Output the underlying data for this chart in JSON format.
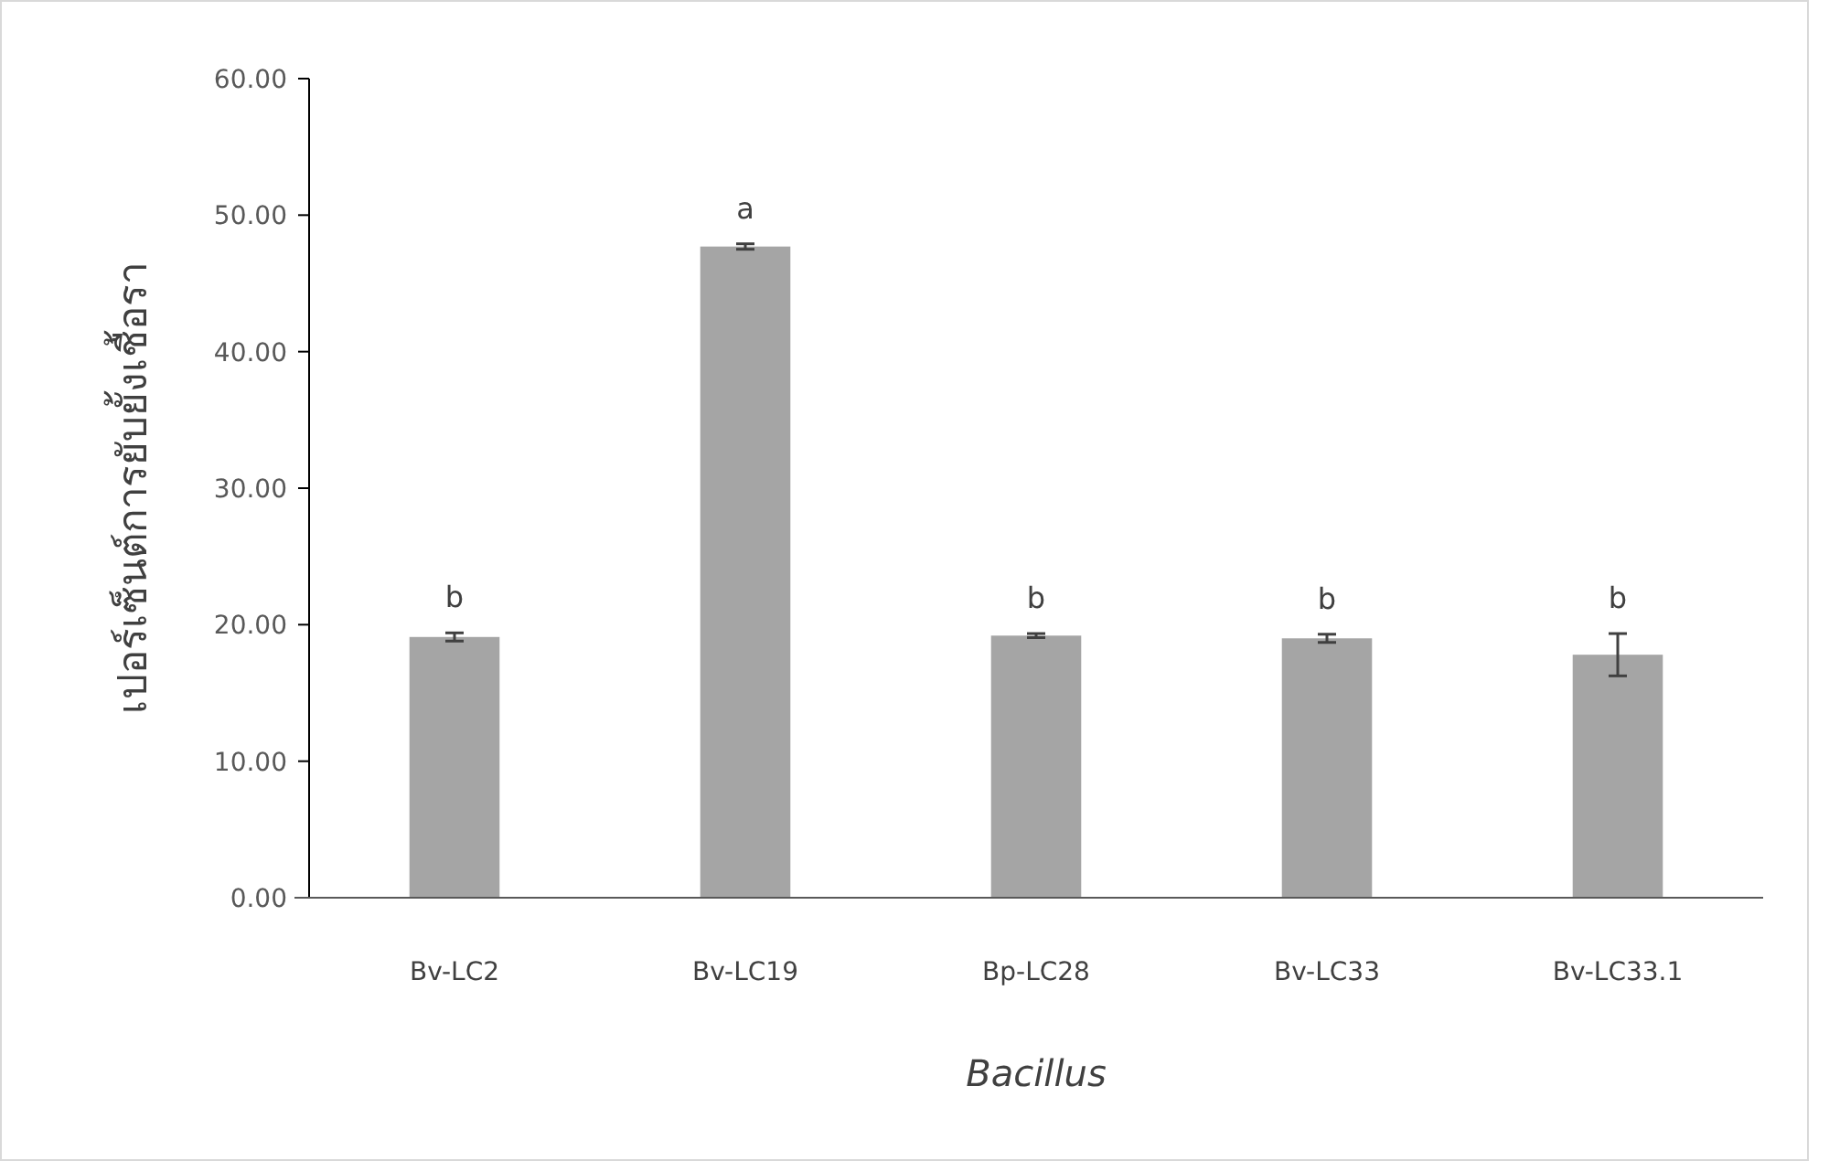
{
  "chart_data": {
    "type": "bar",
    "xlabel": "Bacillus",
    "ylabel": "เปอร์เซ็นต์การยับยั้งเชื้อรา",
    "categories": [
      "Bv-LC2",
      "Bv-LC19",
      "Bp-LC28",
      "Bv-LC33",
      "Bv-LC33.1"
    ],
    "values": [
      19.1,
      47.7,
      19.2,
      19.0,
      17.8
    ],
    "errors": [
      0.3,
      0.2,
      0.15,
      0.3,
      1.55
    ],
    "color": "#a5a5a5",
    "ylim": [
      0,
      60
    ],
    "yticks": [
      {
        "value": 0,
        "label": "0.00"
      },
      {
        "value": 10,
        "label": "10.00"
      },
      {
        "value": 20,
        "label": "20.00"
      },
      {
        "value": 30,
        "label": "30.00"
      },
      {
        "value": 40,
        "label": "40.00"
      },
      {
        "value": 50,
        "label": "50.00"
      },
      {
        "value": 60,
        "label": "60.00"
      }
    ],
    "annotations": [
      "b",
      "a",
      "b",
      "b",
      "b"
    ],
    "grid": false
  }
}
